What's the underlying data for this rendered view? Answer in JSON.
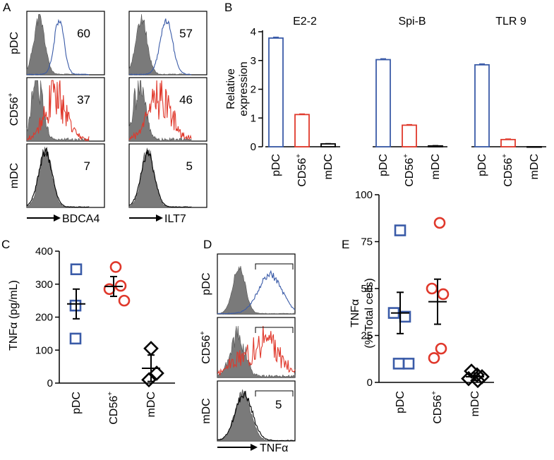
{
  "panel_labels": {
    "A": "A",
    "B": "B",
    "C": "C",
    "D": "D",
    "E": "E"
  },
  "colors": {
    "pdc": "#3a5ba8",
    "cd56": "#e0382b",
    "mdc": "#000000",
    "isotype": "#7a7a7a"
  },
  "chart_data": [
    {
      "panel": "A",
      "type": "histogram-grid",
      "rows": [
        {
          "label": "pDC",
          "sup": ""
        },
        {
          "label": "CD56",
          "sup": "+"
        },
        {
          "label": "mDC",
          "sup": ""
        }
      ],
      "columns": [
        {
          "marker": "BDCA4",
          "values": [
            "60",
            "37",
            "7"
          ]
        },
        {
          "marker": "ILT7",
          "values": [
            "57",
            "46",
            "5"
          ]
        }
      ]
    },
    {
      "panel": "B",
      "type": "bar",
      "ylabel_lines": [
        "Relative",
        "expression"
      ],
      "ylim": [
        0,
        4
      ],
      "yticks": [
        "0",
        "1",
        "2",
        "3",
        "4"
      ],
      "categories": [
        {
          "label": "pDC",
          "sup": ""
        },
        {
          "label": "CD56",
          "sup": "+"
        },
        {
          "label": "mDC",
          "sup": ""
        }
      ],
      "subplots": [
        {
          "title": "E2-2",
          "values": [
            3.78,
            1.12,
            0.1
          ],
          "errors": [
            0.03,
            0.02,
            0.01
          ]
        },
        {
          "title": "Spi-B",
          "values": [
            3.03,
            0.75,
            0.03
          ],
          "errors": [
            0.03,
            0.02,
            0.01
          ]
        },
        {
          "title": "TLR 9",
          "values": [
            2.85,
            0.25,
            0.0
          ],
          "errors": [
            0.03,
            0.02,
            0.0
          ]
        }
      ]
    },
    {
      "panel": "C",
      "type": "scatter",
      "ylabel": "TNFα (pg/mL)",
      "ylim": [
        0,
        400
      ],
      "yticks": [
        "0",
        "100",
        "200",
        "300",
        "400"
      ],
      "groups": [
        {
          "label": "pDC",
          "sup": "",
          "marker": "square",
          "points": [
            345,
            235,
            135
          ],
          "mean": 240,
          "sem": 45
        },
        {
          "label": "CD56",
          "sup": "+",
          "marker": "circle",
          "points": [
            352,
            295,
            285,
            250
          ],
          "mean": 293,
          "sem": 30
        },
        {
          "label": "mDC",
          "sup": "",
          "marker": "diamond",
          "points": [
            105,
            30,
            10
          ],
          "mean": 45,
          "sem": 40
        }
      ]
    },
    {
      "panel": "D",
      "type": "histogram-stack",
      "rows": [
        {
          "label": "pDC",
          "sup": "",
          "value": ""
        },
        {
          "label": "CD56",
          "sup": "+",
          "value": ""
        },
        {
          "label": "mDC",
          "sup": "",
          "value": "5"
        }
      ],
      "marker": "TNFα"
    },
    {
      "panel": "E",
      "type": "scatter",
      "ylabel_lines": [
        "TNFα",
        "(% Total cells)"
      ],
      "ylim": [
        0,
        100
      ],
      "yticks": [
        "0",
        "25",
        "50",
        "75",
        "100"
      ],
      "groups": [
        {
          "label": "pDC",
          "sup": "",
          "marker": "square",
          "points": [
            81,
            37,
            35,
            10,
            10
          ],
          "mean": 37,
          "sem": 11
        },
        {
          "label": "CD56",
          "sup": "+",
          "marker": "circle",
          "points": [
            85,
            50,
            47,
            18,
            13
          ],
          "mean": 43,
          "sem": 12
        },
        {
          "label": "mDC",
          "sup": "",
          "marker": "diamond",
          "points": [
            6,
            4,
            3,
            2,
            1
          ],
          "mean": 3,
          "sem": 2
        }
      ]
    }
  ]
}
